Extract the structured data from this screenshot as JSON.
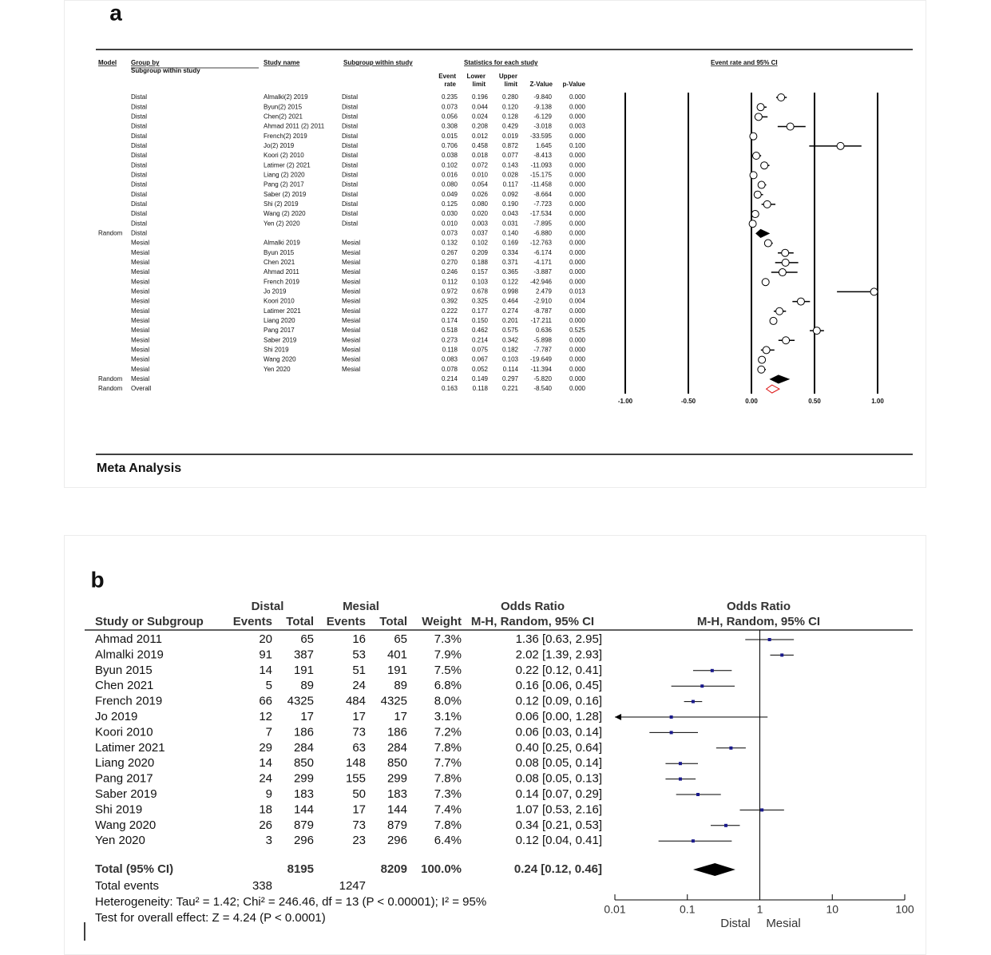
{
  "panel_a": {
    "label": "a",
    "headers": {
      "model": "Model",
      "group_by": "Group by",
      "group_sub": "Subgroup within study",
      "study_name": "Study name",
      "subgroup": "Subgroup within study",
      "statistics": "Statistics for each study",
      "event_rate": [
        "Event",
        "rate"
      ],
      "lower": [
        "Lower",
        "limit"
      ],
      "upper": [
        "Upper",
        "limit"
      ],
      "z": "Z-Value",
      "p": "p-Value",
      "plot": "Event rate and 95% CI"
    },
    "rows": [
      {
        "group": "Distal",
        "study": "Almalki(2) 2019",
        "subgroup": "Distal",
        "event_rate": "0.235",
        "lower": "0.196",
        "upper": "0.280",
        "z": "-9.840",
        "p": "0.000"
      },
      {
        "group": "Distal",
        "study": "Byun(2) 2015",
        "subgroup": "Distal",
        "event_rate": "0.073",
        "lower": "0.044",
        "upper": "0.120",
        "z": "-9.138",
        "p": "0.000"
      },
      {
        "group": "Distal",
        "study": "Chen(2) 2021",
        "subgroup": "Distal",
        "event_rate": "0.056",
        "lower": "0.024",
        "upper": "0.128",
        "z": "-6.129",
        "p": "0.000"
      },
      {
        "group": "Distal",
        "study": "Ahmad 2011 (2) 2011",
        "subgroup": "Distal",
        "event_rate": "0.308",
        "lower": "0.208",
        "upper": "0.429",
        "z": "-3.018",
        "p": "0.003"
      },
      {
        "group": "Distal",
        "study": "French(2) 2019",
        "subgroup": "Distal",
        "event_rate": "0.015",
        "lower": "0.012",
        "upper": "0.019",
        "z": "-33.595",
        "p": "0.000"
      },
      {
        "group": "Distal",
        "study": "Jo(2) 2019",
        "subgroup": "Distal",
        "event_rate": "0.706",
        "lower": "0.458",
        "upper": "0.872",
        "z": "1.645",
        "p": "0.100"
      },
      {
        "group": "Distal",
        "study": "Koori (2) 2010",
        "subgroup": "Distal",
        "event_rate": "0.038",
        "lower": "0.018",
        "upper": "0.077",
        "z": "-8.413",
        "p": "0.000"
      },
      {
        "group": "Distal",
        "study": "Latimer (2) 2021",
        "subgroup": "Distal",
        "event_rate": "0.102",
        "lower": "0.072",
        "upper": "0.143",
        "z": "-11.093",
        "p": "0.000"
      },
      {
        "group": "Distal",
        "study": "Liang (2) 2020",
        "subgroup": "Distal",
        "event_rate": "0.016",
        "lower": "0.010",
        "upper": "0.028",
        "z": "-15.175",
        "p": "0.000"
      },
      {
        "group": "Distal",
        "study": "Pang (2) 2017",
        "subgroup": "Distal",
        "event_rate": "0.080",
        "lower": "0.054",
        "upper": "0.117",
        "z": "-11.458",
        "p": "0.000"
      },
      {
        "group": "Distal",
        "study": "Saber (2) 2019",
        "subgroup": "Distal",
        "event_rate": "0.049",
        "lower": "0.026",
        "upper": "0.092",
        "z": "-8.664",
        "p": "0.000"
      },
      {
        "group": "Distal",
        "study": "Shi (2) 2019",
        "subgroup": "Distal",
        "event_rate": "0.125",
        "lower": "0.080",
        "upper": "0.190",
        "z": "-7.723",
        "p": "0.000"
      },
      {
        "group": "Distal",
        "study": "Wang (2) 2020",
        "subgroup": "Distal",
        "event_rate": "0.030",
        "lower": "0.020",
        "upper": "0.043",
        "z": "-17.534",
        "p": "0.000"
      },
      {
        "group": "Distal",
        "study": "Yen (2) 2020",
        "subgroup": "Distal",
        "event_rate": "0.010",
        "lower": "0.003",
        "upper": "0.031",
        "z": "-7.895",
        "p": "0.000"
      },
      {
        "model": "Random",
        "group": "Distal",
        "event_rate": "0.073",
        "lower": "0.037",
        "upper": "0.140",
        "z": "-6.880",
        "p": "0.000"
      },
      {
        "group": "Mesial",
        "study": "Almalki 2019",
        "subgroup": "Mesial",
        "event_rate": "0.132",
        "lower": "0.102",
        "upper": "0.169",
        "z": "-12.763",
        "p": "0.000"
      },
      {
        "group": "Mesial",
        "study": "Byun 2015",
        "subgroup": "Mesial",
        "event_rate": "0.267",
        "lower": "0.209",
        "upper": "0.334",
        "z": "-6.174",
        "p": "0.000"
      },
      {
        "group": "Mesial",
        "study": "Chen 2021",
        "subgroup": "Mesial",
        "event_rate": "0.270",
        "lower": "0.188",
        "upper": "0.371",
        "z": "-4.171",
        "p": "0.000"
      },
      {
        "group": "Mesial",
        "study": "Ahmad 2011",
        "subgroup": "Mesial",
        "event_rate": "0.246",
        "lower": "0.157",
        "upper": "0.365",
        "z": "-3.887",
        "p": "0.000"
      },
      {
        "group": "Mesial",
        "study": "French 2019",
        "subgroup": "Mesial",
        "event_rate": "0.112",
        "lower": "0.103",
        "upper": "0.122",
        "z": "-42.946",
        "p": "0.000"
      },
      {
        "group": "Mesial",
        "study": "Jo 2019",
        "subgroup": "Mesial",
        "event_rate": "0.972",
        "lower": "0.678",
        "upper": "0.998",
        "z": "2.479",
        "p": "0.013"
      },
      {
        "group": "Mesial",
        "study": "Koori 2010",
        "subgroup": "Mesial",
        "event_rate": "0.392",
        "lower": "0.325",
        "upper": "0.464",
        "z": "-2.910",
        "p": "0.004"
      },
      {
        "group": "Mesial",
        "study": "Latimer 2021",
        "subgroup": "Mesial",
        "event_rate": "0.222",
        "lower": "0.177",
        "upper": "0.274",
        "z": "-8.787",
        "p": "0.000"
      },
      {
        "group": "Mesial",
        "study": "Liang 2020",
        "subgroup": "Mesial",
        "event_rate": "0.174",
        "lower": "0.150",
        "upper": "0.201",
        "z": "-17.211",
        "p": "0.000"
      },
      {
        "group": "Mesial",
        "study": "Pang 2017",
        "subgroup": "Mesial",
        "event_rate": "0.518",
        "lower": "0.462",
        "upper": "0.575",
        "z": "0.636",
        "p": "0.525"
      },
      {
        "group": "Mesial",
        "study": "Saber 2019",
        "subgroup": "Mesial",
        "event_rate": "0.273",
        "lower": "0.214",
        "upper": "0.342",
        "z": "-5.898",
        "p": "0.000"
      },
      {
        "group": "Mesial",
        "study": "Shi 2019",
        "subgroup": "Mesial",
        "event_rate": "0.118",
        "lower": "0.075",
        "upper": "0.182",
        "z": "-7.787",
        "p": "0.000"
      },
      {
        "group": "Mesial",
        "study": "Wang 2020",
        "subgroup": "Mesial",
        "event_rate": "0.083",
        "lower": "0.067",
        "upper": "0.103",
        "z": "-19.649",
        "p": "0.000"
      },
      {
        "group": "Mesial",
        "study": "Yen 2020",
        "subgroup": "Mesial",
        "event_rate": "0.078",
        "lower": "0.052",
        "upper": "0.114",
        "z": "-11.394",
        "p": "0.000"
      },
      {
        "model": "Random",
        "group": "Mesial",
        "event_rate": "0.214",
        "lower": "0.149",
        "upper": "0.297",
        "z": "-5.820",
        "p": "0.000"
      },
      {
        "model": "Random",
        "group": "Overall",
        "event_rate": "0.163",
        "lower": "0.118",
        "upper": "0.221",
        "z": "-8.540",
        "p": "0.000"
      }
    ],
    "xlim": [
      -1,
      1
    ],
    "xticks": [
      {
        "value": -1,
        "label": "-1.00"
      },
      {
        "value": -0.5,
        "label": "-0.50"
      },
      {
        "value": 0,
        "label": "0.00"
      },
      {
        "value": 0.5,
        "label": "0.50"
      },
      {
        "value": 1,
        "label": "1.00"
      }
    ],
    "footer": "Meta Analysis"
  },
  "panel_b": {
    "label": "b",
    "headers": {
      "distal": "Distal",
      "mesial": "Mesial",
      "or_left": "Odds Ratio",
      "or_right": "Odds Ratio",
      "study": "Study or Subgroup",
      "d_events": "Events",
      "d_total": "Total",
      "m_events": "Events",
      "m_total": "Total",
      "weight": "Weight",
      "method_left": "M-H, Random, 95% CI",
      "method_right": "M-H, Random, 95% CI"
    },
    "rows": [
      {
        "study": "Ahmad 2011",
        "d_events": 20,
        "d_total": 65,
        "m_events": 16,
        "m_total": 65,
        "weight": "7.3%",
        "or_ci": "1.36 [0.63, 2.95]",
        "or": 1.36,
        "lower": 0.63,
        "upper": 2.95
      },
      {
        "study": "Almalki 2019",
        "d_events": 91,
        "d_total": 387,
        "m_events": 53,
        "m_total": 401,
        "weight": "7.9%",
        "or_ci": "2.02 [1.39, 2.93]",
        "or": 2.02,
        "lower": 1.39,
        "upper": 2.93
      },
      {
        "study": "Byun 2015",
        "d_events": 14,
        "d_total": 191,
        "m_events": 51,
        "m_total": 191,
        "weight": "7.5%",
        "or_ci": "0.22 [0.12, 0.41]",
        "or": 0.22,
        "lower": 0.12,
        "upper": 0.41
      },
      {
        "study": "Chen 2021",
        "d_events": 5,
        "d_total": 89,
        "m_events": 24,
        "m_total": 89,
        "weight": "6.8%",
        "or_ci": "0.16 [0.06, 0.45]",
        "or": 0.16,
        "lower": 0.06,
        "upper": 0.45
      },
      {
        "study": "French 2019",
        "d_events": 66,
        "d_total": 4325,
        "m_events": 484,
        "m_total": 4325,
        "weight": "8.0%",
        "or_ci": "0.12 [0.09, 0.16]",
        "or": 0.12,
        "lower": 0.09,
        "upper": 0.16
      },
      {
        "study": "Jo 2019",
        "d_events": 12,
        "d_total": 17,
        "m_events": 17,
        "m_total": 17,
        "weight": "3.1%",
        "or_ci": "0.06 [0.00, 1.28]",
        "or": 0.06,
        "lower": 0,
        "upper": 1.28
      },
      {
        "study": "Koori 2010",
        "d_events": 7,
        "d_total": 186,
        "m_events": 73,
        "m_total": 186,
        "weight": "7.2%",
        "or_ci": "0.06 [0.03, 0.14]",
        "or": 0.06,
        "lower": 0.03,
        "upper": 0.14
      },
      {
        "study": "Latimer 2021",
        "d_events": 29,
        "d_total": 284,
        "m_events": 63,
        "m_total": 284,
        "weight": "7.8%",
        "or_ci": "0.40 [0.25, 0.64]",
        "or": 0.4,
        "lower": 0.25,
        "upper": 0.64
      },
      {
        "study": "Liang 2020",
        "d_events": 14,
        "d_total": 850,
        "m_events": 148,
        "m_total": 850,
        "weight": "7.7%",
        "or_ci": "0.08 [0.05, 0.14]",
        "or": 0.08,
        "lower": 0.05,
        "upper": 0.14
      },
      {
        "study": "Pang 2017",
        "d_events": 24,
        "d_total": 299,
        "m_events": 155,
        "m_total": 299,
        "weight": "7.8%",
        "or_ci": "0.08 [0.05, 0.13]",
        "or": 0.08,
        "lower": 0.05,
        "upper": 0.13
      },
      {
        "study": "Saber 2019",
        "d_events": 9,
        "d_total": 183,
        "m_events": 50,
        "m_total": 183,
        "weight": "7.3%",
        "or_ci": "0.14 [0.07, 0.29]",
        "or": 0.14,
        "lower": 0.07,
        "upper": 0.29
      },
      {
        "study": "Shi 2019",
        "d_events": 18,
        "d_total": 144,
        "m_events": 17,
        "m_total": 144,
        "weight": "7.4%",
        "or_ci": "1.07 [0.53, 2.16]",
        "or": 1.07,
        "lower": 0.53,
        "upper": 2.16
      },
      {
        "study": "Wang 2020",
        "d_events": 26,
        "d_total": 879,
        "m_events": 73,
        "m_total": 879,
        "weight": "7.8%",
        "or_ci": "0.34 [0.21, 0.53]",
        "or": 0.34,
        "lower": 0.21,
        "upper": 0.53
      },
      {
        "study": "Yen 2020",
        "d_events": 3,
        "d_total": 296,
        "m_events": 23,
        "m_total": 296,
        "weight": "6.4%",
        "or_ci": "0.12 [0.04, 0.41]",
        "or": 0.12,
        "lower": 0.04,
        "upper": 0.41
      }
    ],
    "total": {
      "study": "Total (95% CI)",
      "d_total": 8195,
      "m_total": 8209,
      "weight": "100.0%",
      "or_ci": "0.24 [0.12, 0.46]",
      "or": 0.24,
      "lower": 0.12,
      "upper": 0.46
    },
    "total_events": {
      "label": "Total events",
      "distal": 338,
      "mesial": 1247
    },
    "heterogeneity": "Heterogeneity: Tau² = 1.42; Chi² = 246.46, df = 13 (P < 0.00001); I² = 95%",
    "overall_effect": "Test for overall effect: Z = 4.24 (P < 0.0001)",
    "xlim": [
      0.01,
      100
    ],
    "xticks": [
      0.01,
      0.1,
      1,
      10,
      100
    ],
    "log_scale": true,
    "favours_left": "Distal",
    "favours_right": "Mesial",
    "point_color": "#1a1a8c"
  }
}
